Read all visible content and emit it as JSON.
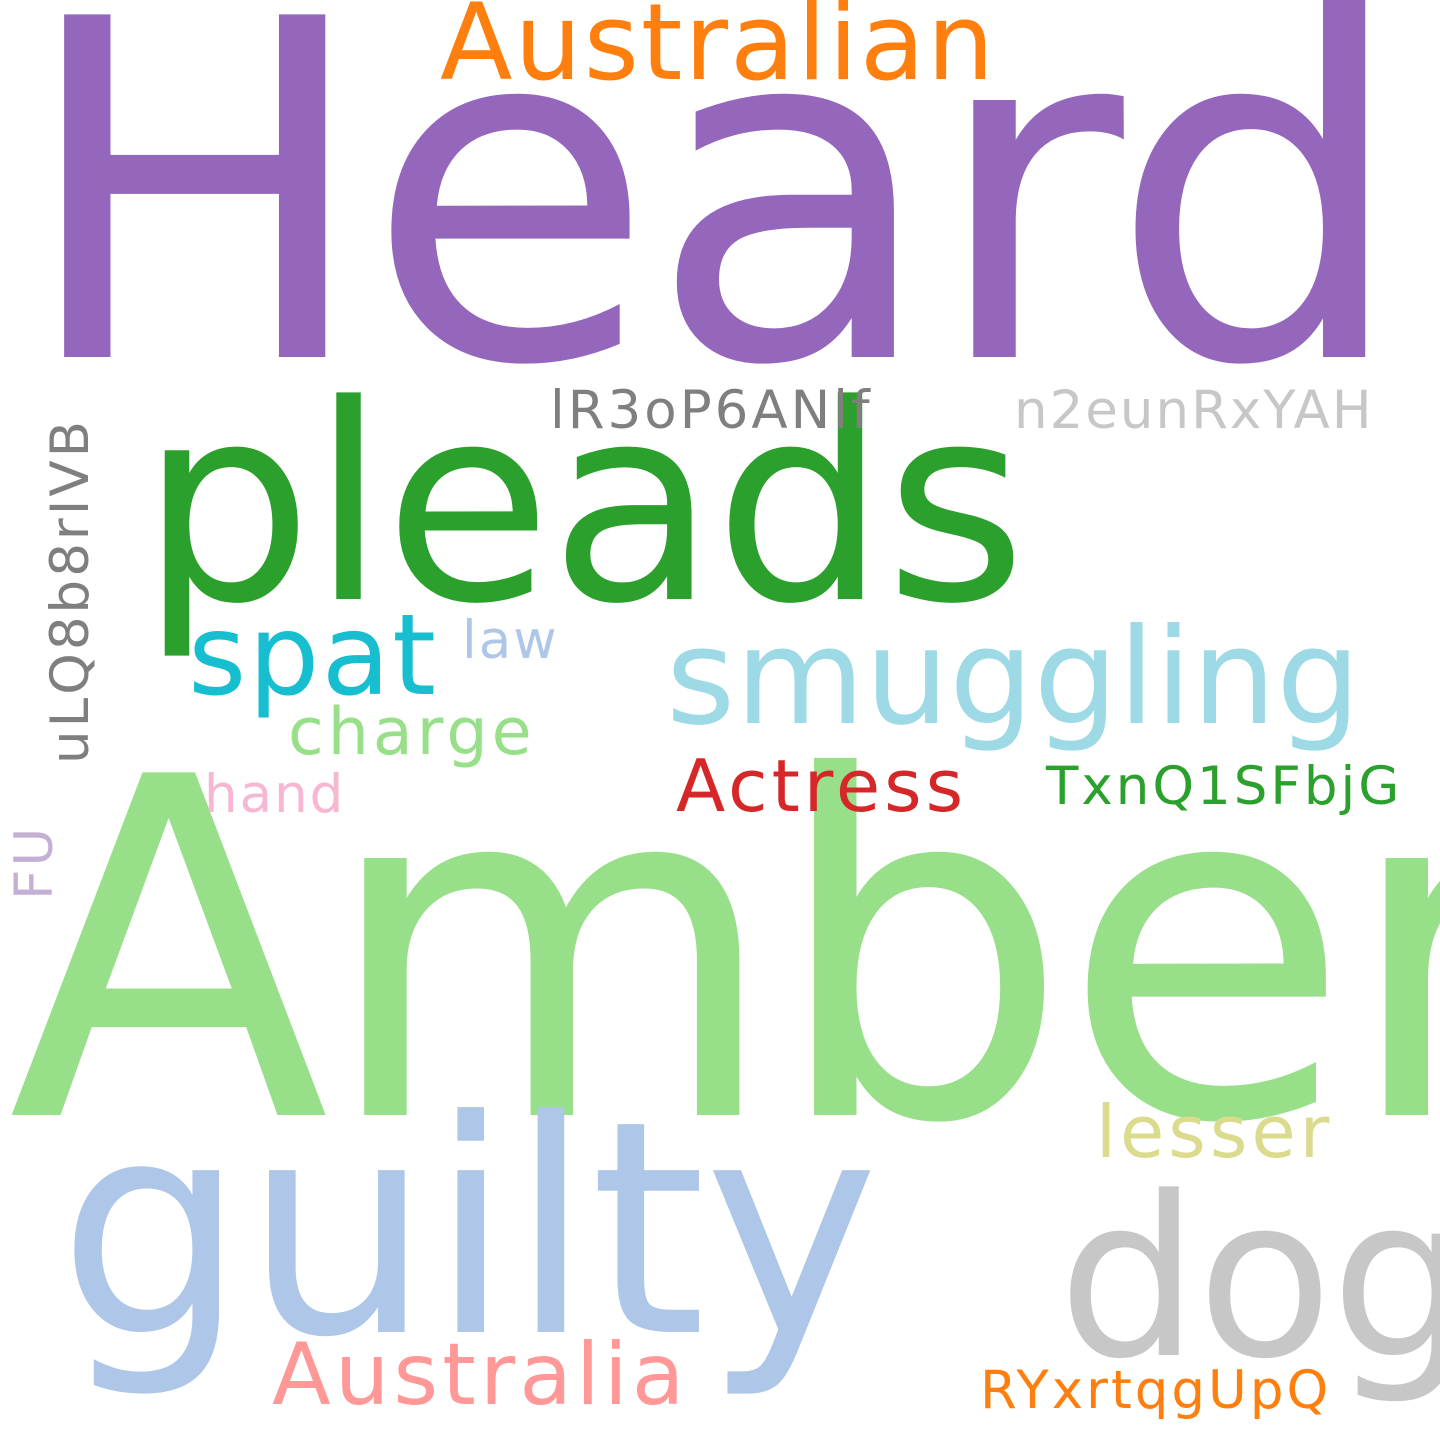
{
  "wordcloud": {
    "words": [
      {
        "text": "Heard",
        "color": "#9467bd"
      },
      {
        "text": "Amber",
        "color": "#98df8a"
      },
      {
        "text": "pleads",
        "color": "#2ca02c"
      },
      {
        "text": "guilty",
        "color": "#aec7e8"
      },
      {
        "text": "dog",
        "color": "#c7c7c7"
      },
      {
        "text": "Australian",
        "color": "#ff7f0e"
      },
      {
        "text": "smuggling",
        "color": "#9edae5"
      },
      {
        "text": "spat",
        "color": "#17becf"
      },
      {
        "text": "Australia",
        "color": "#ff9896"
      },
      {
        "text": "Actress",
        "color": "#d62728"
      },
      {
        "text": "charge",
        "color": "#98df8a"
      },
      {
        "text": "lesser",
        "color": "#dbdb8d"
      },
      {
        "text": "lR3oP6ANlf",
        "color": "#7f7f7f"
      },
      {
        "text": "n2eunRxYAH",
        "color": "#c7c7c7"
      },
      {
        "text": "TxnQ1SFbjG",
        "color": "#2ca02c"
      },
      {
        "text": "RYxrtqgUpQ",
        "color": "#ff7f0e"
      },
      {
        "text": "uLQ8b8rIVB",
        "color": "#7f7f7f"
      },
      {
        "text": "law",
        "color": "#aec7e8"
      },
      {
        "text": "hand",
        "color": "#f7b6d2"
      },
      {
        "text": "FU",
        "color": "#c5b0d5"
      }
    ]
  }
}
